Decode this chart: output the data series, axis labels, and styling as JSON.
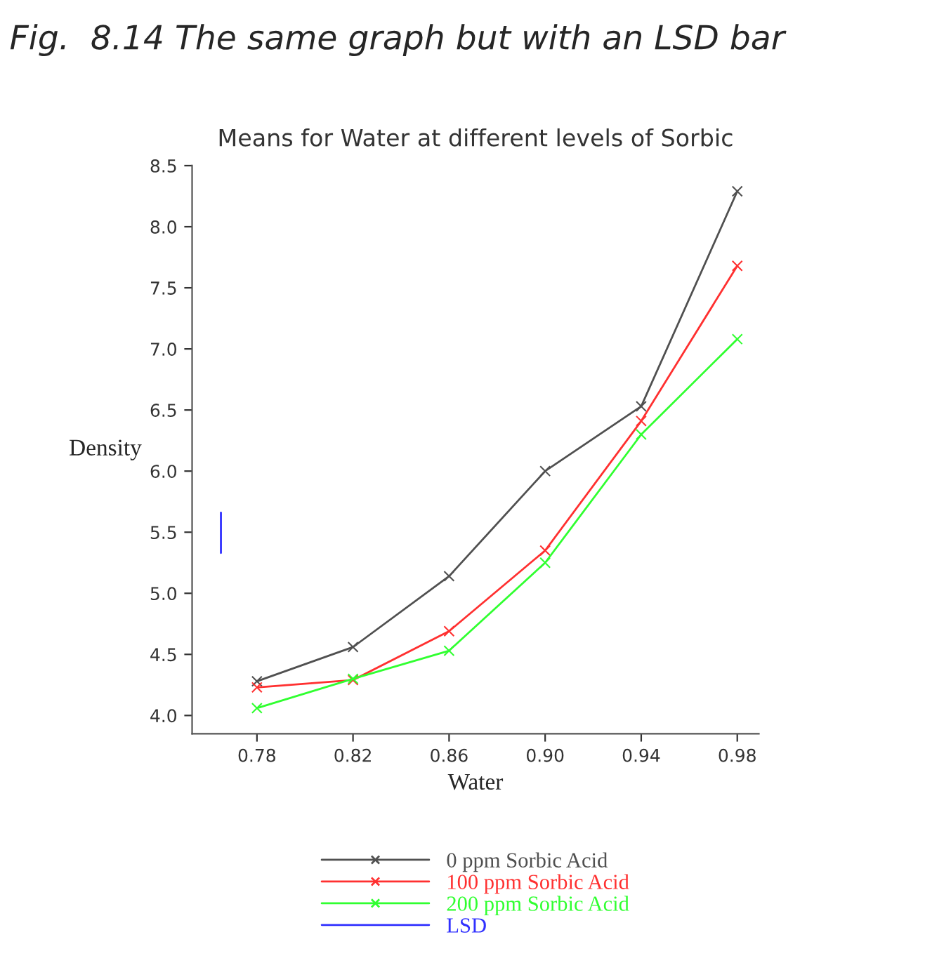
{
  "chart_data": {
    "type": "line",
    "title": "Fig.  8.14 The same graph but with an LSD bar",
    "subtitle": "Means for Water at different levels of Sorbic",
    "xlabel": "Water",
    "ylabel": "Density",
    "x": [
      0.78,
      0.82,
      0.86,
      0.9,
      0.94,
      0.98
    ],
    "series": [
      {
        "name": "0 ppm Sorbic Acid",
        "color": "#505050",
        "values": [
          4.28,
          4.56,
          5.14,
          6.0,
          6.53,
          8.29
        ]
      },
      {
        "name": "100 ppm Sorbic Acid",
        "color": "#ff3030",
        "values": [
          4.23,
          4.29,
          4.69,
          5.35,
          6.41,
          7.68
        ]
      },
      {
        "name": "200 ppm Sorbic Acid",
        "color": "#30ff30",
        "values": [
          4.06,
          4.3,
          4.53,
          5.25,
          6.3,
          7.08
        ]
      },
      {
        "name": "LSD",
        "color": "#3030ff",
        "type": "line",
        "marker": "none",
        "x": [
          0.765,
          0.765
        ],
        "values": [
          5.33,
          5.66
        ]
      }
    ],
    "marker": "cross",
    "line_style": "solid",
    "xlim": [
      0.753,
      0.989
    ],
    "xticks": [
      {
        "value": 0.78,
        "label": "0.78"
      },
      {
        "value": 0.82,
        "label": "0.82"
      },
      {
        "value": 0.86,
        "label": "0.86"
      },
      {
        "value": 0.9,
        "label": "0.90"
      },
      {
        "value": 0.94,
        "label": "0.94"
      },
      {
        "value": 0.98,
        "label": "0.98"
      }
    ],
    "ylim": [
      3.85,
      8.5
    ],
    "yticks": [
      {
        "value": 4.0,
        "label": "4.0"
      },
      4.5,
      {
        "value": 5.0,
        "label": "5.0"
      },
      5.5,
      {
        "value": 6.0,
        "label": "6.0"
      },
      6.5,
      {
        "value": 7.0,
        "label": "7.0"
      },
      7.5,
      {
        "value": 8.0,
        "label": "8.0"
      },
      8.5
    ],
    "grid": false,
    "legend": "bottom"
  }
}
